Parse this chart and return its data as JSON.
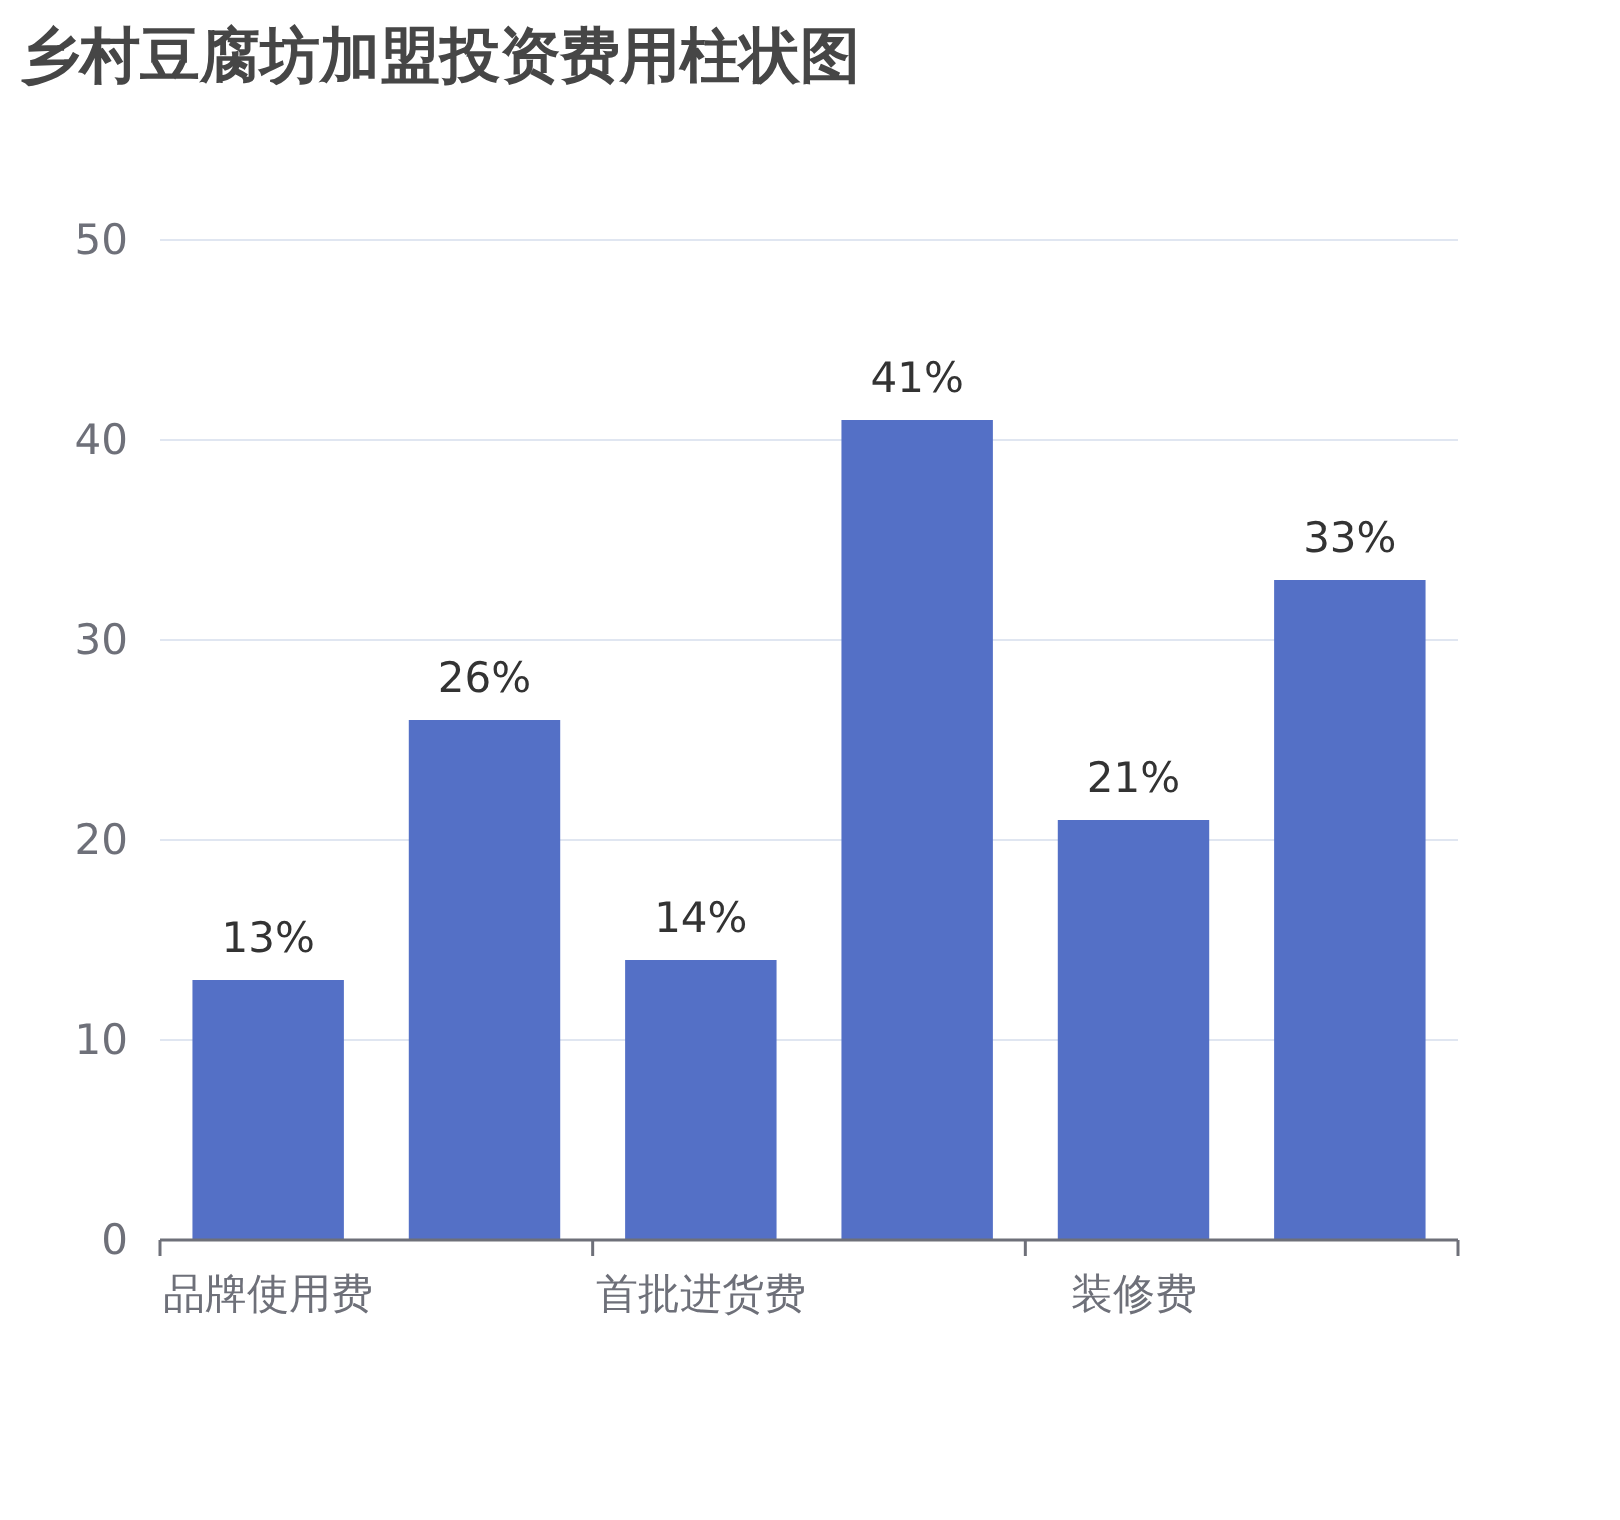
{
  "chart_data": {
    "type": "bar",
    "title": "乡村豆腐坊加盟投资费用柱状图",
    "categories": [
      "品牌使用费",
      null,
      "首批进货费",
      null,
      "装修费",
      null
    ],
    "values": [
      13,
      26,
      14,
      41,
      21,
      33
    ],
    "value_labels": [
      "13%",
      "26%",
      "14%",
      "41%",
      "21%",
      "33%"
    ],
    "color": "#5470c6",
    "ylim": [
      0,
      50
    ],
    "yticks": [
      0,
      10,
      20,
      30,
      40,
      50
    ],
    "grid": "y"
  }
}
